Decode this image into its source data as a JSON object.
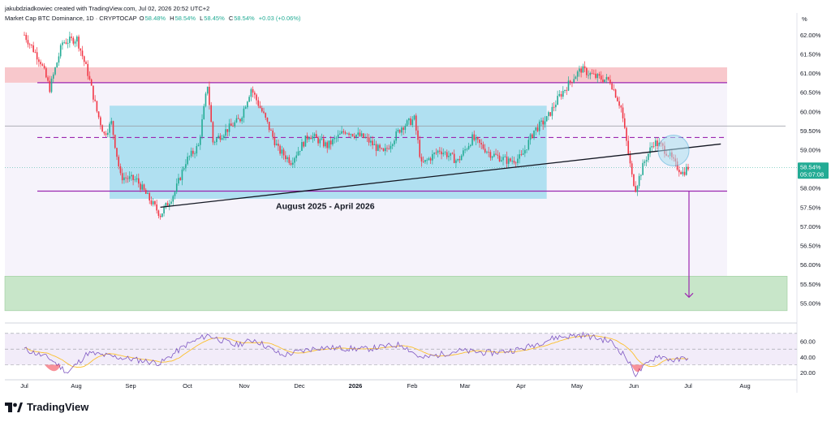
{
  "header": {
    "attribution": "jakubdziadkowiec created with TradingView.com, Jul 02, 2026 20:52 UTC+2"
  },
  "legend": {
    "symbol": "Market Cap BTC Dominance, 1D · CRYPTOCAP",
    "open_label": "O",
    "open_value": "58.48%",
    "high_label": "H",
    "high_value": "58.54%",
    "low_label": "L",
    "low_value": "58.45%",
    "close_label": "C",
    "close_value": "58.54%",
    "change_value": "+0.03 (+0.06%)"
  },
  "brand": {
    "name": "TradingView",
    "logo_icon": "tradingview-logo-icon"
  },
  "price_badge": {
    "value": "58.54%",
    "countdown": "05:07:08",
    "color": "#22ab94"
  },
  "colors": {
    "up": "#22ab94",
    "down": "#f23645",
    "purple": "#9c27b0",
    "rsi_line": "#7e57c2",
    "rsi_ma": "#fbc02d"
  },
  "chart_data": {
    "type": "candlestick",
    "yunit": "%",
    "ylim": [
      54.5,
      62.4
    ],
    "y_ticks": [
      "62.00%",
      "61.50%",
      "61.00%",
      "60.50%",
      "60.00%",
      "59.50%",
      "59.00%",
      "58.50%",
      "58.00%",
      "57.50%",
      "57.00%",
      "56.50%",
      "56.00%",
      "55.50%",
      "55.00%"
    ],
    "x_ticks": [
      "Jul",
      "Aug",
      "Sep",
      "Oct",
      "Nov",
      "Dec",
      "2026",
      "Feb",
      "Mar",
      "Apr",
      "May",
      "Jun",
      "Jul",
      "Aug"
    ],
    "x_range": [
      "2025-07-01",
      "2026-08-31"
    ],
    "last_close": 58.54,
    "path": [
      [
        "2025-07-01",
        62.0
      ],
      [
        "2025-07-10",
        61.3
      ],
      [
        "2025-07-15",
        60.6
      ],
      [
        "2025-07-22",
        61.8
      ],
      [
        "2025-07-30",
        61.9
      ],
      [
        "2025-08-05",
        61.0
      ],
      [
        "2025-08-10",
        60.0
      ],
      [
        "2025-08-14",
        59.4
      ],
      [
        "2025-08-18",
        59.7
      ],
      [
        "2025-08-23",
        58.3
      ],
      [
        "2025-09-01",
        58.2
      ],
      [
        "2025-09-08",
        57.7
      ],
      [
        "2025-09-14",
        57.3
      ],
      [
        "2025-09-22",
        57.9
      ],
      [
        "2025-09-28",
        58.7
      ],
      [
        "2025-10-05",
        59.1
      ],
      [
        "2025-10-10",
        60.7
      ],
      [
        "2025-10-13",
        59.2
      ],
      [
        "2025-10-20",
        59.5
      ],
      [
        "2025-10-28",
        59.8
      ],
      [
        "2025-11-03",
        60.6
      ],
      [
        "2025-11-10",
        59.9
      ],
      [
        "2025-11-18",
        59.0
      ],
      [
        "2025-11-25",
        58.7
      ],
      [
        "2025-12-05",
        59.4
      ],
      [
        "2025-12-15",
        59.1
      ],
      [
        "2025-12-25",
        59.5
      ],
      [
        "2026-01-05",
        59.3
      ],
      [
        "2026-01-15",
        58.9
      ],
      [
        "2026-01-25",
        59.6
      ],
      [
        "2026-02-01",
        59.8
      ],
      [
        "2026-02-05",
        58.6
      ],
      [
        "2026-02-15",
        59.0
      ],
      [
        "2026-02-25",
        58.7
      ],
      [
        "2026-03-05",
        59.3
      ],
      [
        "2026-03-15",
        58.9
      ],
      [
        "2026-03-25",
        58.7
      ],
      [
        "2026-04-01",
        58.8
      ],
      [
        "2026-04-08",
        59.5
      ],
      [
        "2026-04-15",
        59.8
      ],
      [
        "2026-04-22",
        60.4
      ],
      [
        "2026-04-30",
        60.9
      ],
      [
        "2026-05-04",
        61.1
      ],
      [
        "2026-05-12",
        60.9
      ],
      [
        "2026-05-20",
        60.8
      ],
      [
        "2026-05-26",
        60.1
      ],
      [
        "2026-06-01",
        58.3
      ],
      [
        "2026-06-03",
        58.0
      ],
      [
        "2026-06-08",
        58.7
      ],
      [
        "2026-06-13",
        59.2
      ],
      [
        "2026-06-17",
        59.1
      ],
      [
        "2026-06-21",
        58.9
      ],
      [
        "2026-06-25",
        58.6
      ],
      [
        "2026-06-29",
        58.4
      ],
      [
        "2026-07-02",
        58.54
      ]
    ],
    "levels": [
      {
        "price": 60.75,
        "style": "solid",
        "color": "#9c27b0"
      },
      {
        "price": 59.32,
        "style": "dashed",
        "color": "#9c27b0"
      },
      {
        "price": 57.92,
        "style": "solid",
        "color": "#9c27b0"
      }
    ],
    "zones": [
      {
        "from": 60.75,
        "to": 61.15,
        "color": "#f8c8cc"
      },
      {
        "from": 54.8,
        "to": 55.7,
        "color": "#c8e6c9"
      },
      {
        "from": 57.72,
        "to": 60.15,
        "x_from": "2025-08-17",
        "x_to": "2026-04-15",
        "color": "#a9def0"
      }
    ],
    "trendline": {
      "from": [
        "2025-09-14",
        57.5
      ],
      "to": [
        "2026-07-20",
        59.15
      ]
    },
    "annotation": {
      "text": "August 2025 - April 2026",
      "x": "2025-12-25",
      "y": 57.5
    },
    "target_arrow": {
      "x": "2026-07-02",
      "from": 57.92,
      "to": 55.15
    },
    "rsi": {
      "ylim": [
        15,
        75
      ],
      "y_ticks": [
        "60.00",
        "40.00",
        "20.00"
      ],
      "path": [
        [
          "2025-07-01",
          50
        ],
        [
          "2025-07-15",
          38
        ],
        [
          "2025-07-25",
          20
        ],
        [
          "2025-08-05",
          45
        ],
        [
          "2025-08-20",
          40
        ],
        [
          "2025-09-05",
          35
        ],
        [
          "2025-09-14",
          32
        ],
        [
          "2025-09-28",
          55
        ],
        [
          "2025-10-10",
          68
        ],
        [
          "2025-10-25",
          55
        ],
        [
          "2025-11-05",
          62
        ],
        [
          "2025-11-20",
          42
        ],
        [
          "2025-12-10",
          52
        ],
        [
          "2026-01-05",
          50
        ],
        [
          "2026-01-25",
          56
        ],
        [
          "2026-02-05",
          38
        ],
        [
          "2026-02-25",
          48
        ],
        [
          "2026-03-15",
          45
        ],
        [
          "2026-04-01",
          50
        ],
        [
          "2026-04-20",
          65
        ],
        [
          "2026-05-05",
          68
        ],
        [
          "2026-05-20",
          60
        ],
        [
          "2026-05-28",
          42
        ],
        [
          "2026-06-03",
          18
        ],
        [
          "2026-06-15",
          42
        ],
        [
          "2026-06-25",
          35
        ],
        [
          "2026-07-02",
          40
        ]
      ]
    }
  }
}
